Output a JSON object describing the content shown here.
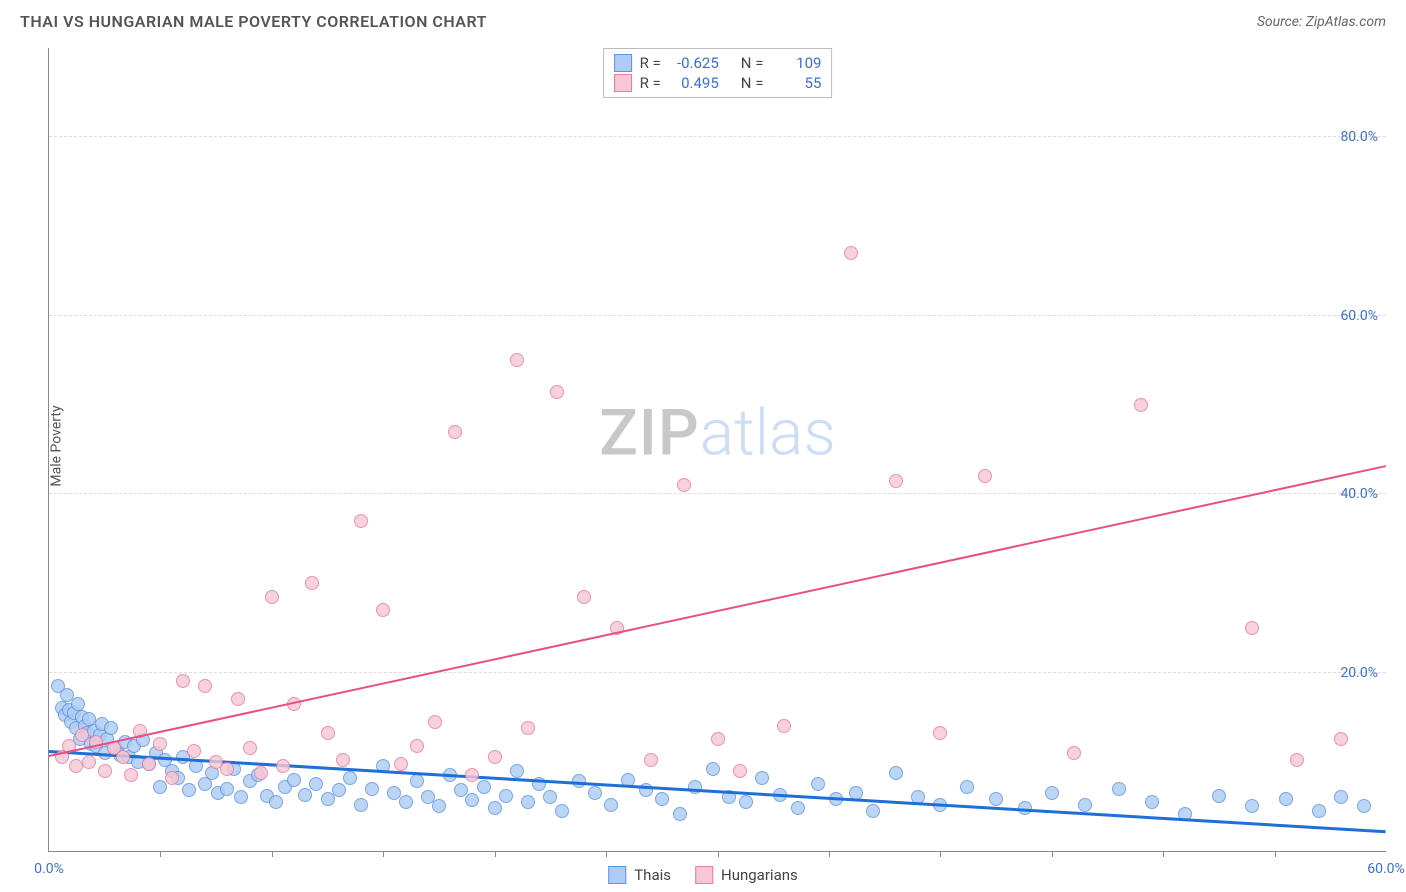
{
  "header": {
    "title": "THAI VS HUNGARIAN MALE POVERTY CORRELATION CHART",
    "source": "Source: ZipAtlas.com"
  },
  "y_axis": {
    "label": "Male Poverty"
  },
  "watermark": {
    "part1": "ZIP",
    "part2": "atlas"
  },
  "chart": {
    "type": "scatter",
    "xlim": [
      0,
      60
    ],
    "ylim": [
      0,
      90
    ],
    "y_ticks": [
      20,
      40,
      60,
      80
    ],
    "y_tick_labels": [
      "20.0%",
      "40.0%",
      "60.0%",
      "80.0%"
    ],
    "x_tick_labels": {
      "min": "0.0%",
      "max": "60.0%"
    },
    "x_minor_tick_step": 5,
    "background_color": "#ffffff",
    "grid_color": "#dddddd",
    "axis_color": "#888888",
    "tick_label_color": "#3b6fd6",
    "series": [
      {
        "name": "Thais",
        "color_fill": "#aeccf4",
        "color_stroke": "#5c94e0",
        "marker_radius": 7,
        "stats": {
          "R_label": "R =",
          "R": "-0.625",
          "N_label": "N =",
          "N": "109"
        },
        "trend": {
          "x1": 0,
          "y1": 11,
          "x2": 60,
          "y2": 2,
          "color": "#1e6fd6",
          "width": 2.5
        },
        "points": [
          [
            0.4,
            18.5
          ],
          [
            0.6,
            16
          ],
          [
            0.7,
            15.2
          ],
          [
            0.8,
            17.5
          ],
          [
            0.9,
            15.8
          ],
          [
            1,
            14.5
          ],
          [
            1.1,
            15.5
          ],
          [
            1.2,
            13.8
          ],
          [
            1.3,
            16.5
          ],
          [
            1.4,
            12.5
          ],
          [
            1.5,
            15
          ],
          [
            1.6,
            14
          ],
          [
            1.7,
            13.2
          ],
          [
            1.8,
            14.8
          ],
          [
            1.9,
            12
          ],
          [
            2,
            13.5
          ],
          [
            2.1,
            11.8
          ],
          [
            2.3,
            13
          ],
          [
            2.4,
            14.2
          ],
          [
            2.5,
            11
          ],
          [
            2.6,
            12.6
          ],
          [
            2.8,
            13.8
          ],
          [
            3,
            11.5
          ],
          [
            3.2,
            10.8
          ],
          [
            3.4,
            12.2
          ],
          [
            3.6,
            10.5
          ],
          [
            3.8,
            11.8
          ],
          [
            4,
            10
          ],
          [
            4.2,
            12.4
          ],
          [
            4.5,
            9.8
          ],
          [
            4.8,
            11
          ],
          [
            5,
            7.2
          ],
          [
            5.2,
            10.2
          ],
          [
            5.5,
            9
          ],
          [
            5.8,
            8.2
          ],
          [
            6,
            10.5
          ],
          [
            6.3,
            6.8
          ],
          [
            6.6,
            9.5
          ],
          [
            7,
            7.5
          ],
          [
            7.3,
            8.8
          ],
          [
            7.6,
            6.5
          ],
          [
            8,
            7
          ],
          [
            8.3,
            9.2
          ],
          [
            8.6,
            6
          ],
          [
            9,
            7.8
          ],
          [
            9.4,
            8.5
          ],
          [
            9.8,
            6.2
          ],
          [
            10.2,
            5.5
          ],
          [
            10.6,
            7.2
          ],
          [
            11,
            8
          ],
          [
            11.5,
            6.3
          ],
          [
            12,
            7.5
          ],
          [
            12.5,
            5.8
          ],
          [
            13,
            6.8
          ],
          [
            13.5,
            8.2
          ],
          [
            14,
            5.2
          ],
          [
            14.5,
            7
          ],
          [
            15,
            9.5
          ],
          [
            15.5,
            6.5
          ],
          [
            16,
            5.5
          ],
          [
            16.5,
            7.8
          ],
          [
            17,
            6
          ],
          [
            17.5,
            5
          ],
          [
            18,
            8.5
          ],
          [
            18.5,
            6.8
          ],
          [
            19,
            5.7
          ],
          [
            19.5,
            7.2
          ],
          [
            20,
            4.8
          ],
          [
            20.5,
            6.2
          ],
          [
            21,
            9
          ],
          [
            21.5,
            5.5
          ],
          [
            22,
            7.5
          ],
          [
            22.5,
            6
          ],
          [
            23,
            4.5
          ],
          [
            23.8,
            7.8
          ],
          [
            24.5,
            6.5
          ],
          [
            25.2,
            5.2
          ],
          [
            26,
            8
          ],
          [
            26.8,
            6.8
          ],
          [
            27.5,
            5.8
          ],
          [
            28.3,
            4.2
          ],
          [
            29,
            7.2
          ],
          [
            29.8,
            9.2
          ],
          [
            30.5,
            6
          ],
          [
            31.3,
            5.5
          ],
          [
            32,
            8.2
          ],
          [
            32.8,
            6.3
          ],
          [
            33.6,
            4.8
          ],
          [
            34.5,
            7.5
          ],
          [
            35.3,
            5.8
          ],
          [
            36.2,
            6.5
          ],
          [
            37,
            4.5
          ],
          [
            38,
            8.8
          ],
          [
            39,
            6
          ],
          [
            40,
            5.2
          ],
          [
            41.2,
            7.2
          ],
          [
            42.5,
            5.8
          ],
          [
            43.8,
            4.8
          ],
          [
            45,
            6.5
          ],
          [
            46.5,
            5.2
          ],
          [
            48,
            7
          ],
          [
            49.5,
            5.5
          ],
          [
            51,
            4.2
          ],
          [
            52.5,
            6.2
          ],
          [
            54,
            5
          ],
          [
            55.5,
            5.8
          ],
          [
            57,
            4.5
          ],
          [
            58,
            6
          ],
          [
            59,
            5
          ]
        ]
      },
      {
        "name": "Hungarians",
        "color_fill": "#f6c7d4",
        "color_stroke": "#e87ba1",
        "marker_radius": 7,
        "stats": {
          "R_label": "R =",
          "R": "0.495",
          "N_label": "N =",
          "N": "55"
        },
        "trend": {
          "x1": 0,
          "y1": 10.5,
          "x2": 60,
          "y2": 43,
          "color": "#e84f82",
          "width": 2
        },
        "points": [
          [
            0.6,
            10.5
          ],
          [
            0.9,
            11.8
          ],
          [
            1.2,
            9.5
          ],
          [
            1.5,
            13
          ],
          [
            1.8,
            10
          ],
          [
            2.1,
            12.2
          ],
          [
            2.5,
            9
          ],
          [
            2.9,
            11.5
          ],
          [
            3.3,
            10.5
          ],
          [
            3.7,
            8.5
          ],
          [
            4.1,
            13.5
          ],
          [
            4.5,
            9.8
          ],
          [
            5,
            12
          ],
          [
            5.5,
            8.2
          ],
          [
            6,
            19
          ],
          [
            6.5,
            11.2
          ],
          [
            7,
            18.5
          ],
          [
            7.5,
            10
          ],
          [
            8,
            9.2
          ],
          [
            8.5,
            17
          ],
          [
            9,
            11.5
          ],
          [
            9.5,
            8.8
          ],
          [
            10,
            28.5
          ],
          [
            10.5,
            9.5
          ],
          [
            11,
            16.5
          ],
          [
            11.8,
            30
          ],
          [
            12.5,
            13.2
          ],
          [
            13.2,
            10.2
          ],
          [
            14,
            37
          ],
          [
            15,
            27
          ],
          [
            15.8,
            9.8
          ],
          [
            16.5,
            11.8
          ],
          [
            17.3,
            14.5
          ],
          [
            18.2,
            47
          ],
          [
            19,
            8.5
          ],
          [
            20,
            10.5
          ],
          [
            21,
            55
          ],
          [
            21.5,
            13.8
          ],
          [
            22.8,
            51.5
          ],
          [
            24,
            28.5
          ],
          [
            25.5,
            25
          ],
          [
            27,
            10.2
          ],
          [
            28.5,
            41
          ],
          [
            30,
            12.5
          ],
          [
            31,
            9
          ],
          [
            33,
            14
          ],
          [
            36,
            67
          ],
          [
            38,
            41.5
          ],
          [
            40,
            13.2
          ],
          [
            42,
            42
          ],
          [
            46,
            11
          ],
          [
            49,
            50
          ],
          [
            54,
            25
          ],
          [
            56,
            10.2
          ],
          [
            58,
            12.5
          ]
        ]
      }
    ],
    "legend_bottom": [
      {
        "label": "Thais",
        "fill": "#aeccf4",
        "stroke": "#5c94e0"
      },
      {
        "label": "Hungarians",
        "fill": "#f6c7d4",
        "stroke": "#e87ba1"
      }
    ]
  }
}
